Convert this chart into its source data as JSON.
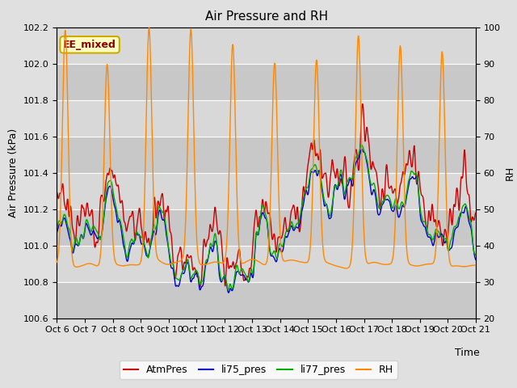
{
  "title": "Air Pressure and RH",
  "xlabel": "Time",
  "ylabel_left": "Air Pressure (kPa)",
  "ylabel_right": "RH",
  "annotation": "EE_mixed",
  "ylim_left": [
    100.6,
    102.2
  ],
  "ylim_right": [
    20,
    100
  ],
  "yticks_left": [
    100.6,
    100.8,
    101.0,
    101.2,
    101.4,
    101.6,
    101.8,
    102.0,
    102.2
  ],
  "yticks_right": [
    20,
    30,
    40,
    50,
    60,
    70,
    80,
    90,
    100
  ],
  "xtick_labels": [
    "Oct 6",
    "Oct 7",
    "Oct 8",
    "Oct 9",
    "Oct 10",
    "Oct 11",
    "Oct 12",
    "Oct 13",
    "Oct 14",
    "Oct 15",
    "Oct 16",
    "Oct 17",
    "Oct 18",
    "Oct 19",
    "Oct 20",
    "Oct 21"
  ],
  "legend_labels": [
    "AtmPres",
    "li75_pres",
    "li77_pres",
    "RH"
  ],
  "line_colors": [
    "#cc0000",
    "#0000cc",
    "#00aa00",
    "#ff8800"
  ],
  "background_color": "#e0e0e0",
  "plot_bg_color": "#d8d8d8",
  "stripe_color": "#c8c8c8",
  "annotation_bg": "#ffffc0",
  "annotation_border": "#ccaa00",
  "annotation_text_color": "#880000",
  "grid_color": "#ffffff",
  "title_fontsize": 11,
  "axis_fontsize": 9,
  "tick_fontsize": 8,
  "legend_fontsize": 9,
  "seed": 7,
  "n_points": 1500
}
